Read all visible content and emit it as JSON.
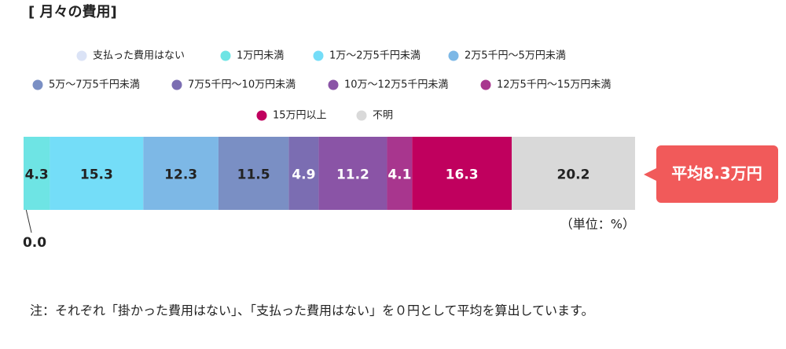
{
  "chart_data": {
    "type": "bar",
    "orientation": "horizontal",
    "stacked": true,
    "title": "[ 月々の費用]",
    "series": [
      {
        "name": "支払った費用はない",
        "color": "#dbe3f6",
        "values": [
          0.0
        ],
        "value_labels": [
          "0.0"
        ]
      },
      {
        "name": "1万円未満",
        "color": "#6ee4e4",
        "values": [
          4.3
        ],
        "value_labels": [
          "4.3"
        ]
      },
      {
        "name": "1万～2万5千円未満",
        "color": "#74ddf8",
        "values": [
          15.3
        ],
        "value_labels": [
          "15.3"
        ]
      },
      {
        "name": "2万5千円～5万円未満",
        "color": "#7db8e6",
        "values": [
          12.3
        ],
        "value_labels": [
          "12.3"
        ]
      },
      {
        "name": "5万～7万5千円未満",
        "color": "#7a8fc4",
        "values": [
          11.5
        ],
        "value_labels": [
          "11.5"
        ]
      },
      {
        "name": "7万5千円～10万円未満",
        "color": "#7b6db2",
        "values": [
          4.9
        ],
        "value_labels": [
          "4.9"
        ]
      },
      {
        "name": "10万～12万5千円未満",
        "color": "#8a54a6",
        "values": [
          11.2
        ],
        "value_labels": [
          "11.2"
        ]
      },
      {
        "name": "12万5千円～15万円未満",
        "color": "#a8368e",
        "values": [
          4.1
        ],
        "value_labels": [
          "4.1"
        ]
      },
      {
        "name": "15万円以上",
        "color": "#c0005e",
        "values": [
          16.3
        ],
        "value_labels": [
          "16.3"
        ]
      },
      {
        "name": "不明",
        "color": "#d9d9d9",
        "values": [
          20.2
        ],
        "value_labels": [
          "20.2"
        ]
      }
    ],
    "callout": "平均8.3万円",
    "unit_label": "（単位：%）",
    "note": "注：それぞれ「掛かった費用はない」、「支払った費用はない」を０円として平均を算出しています。"
  }
}
